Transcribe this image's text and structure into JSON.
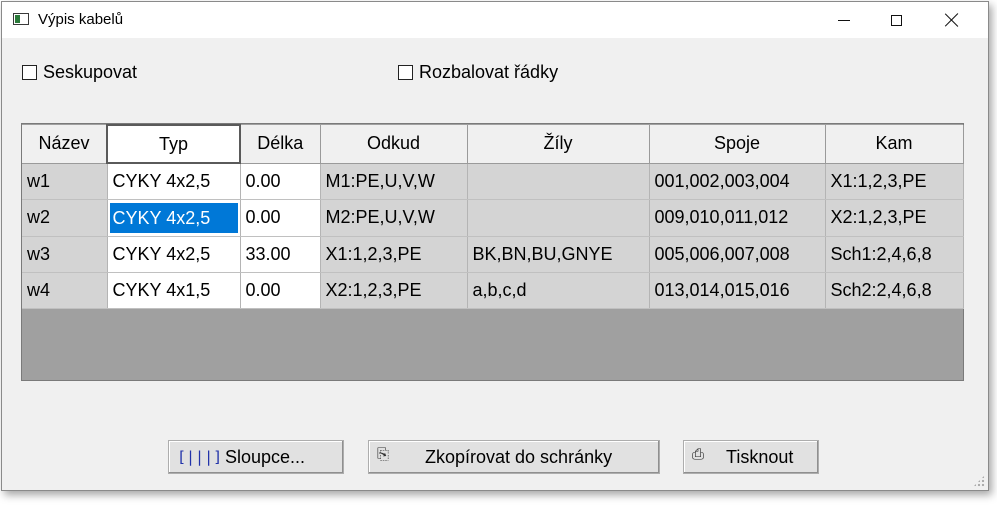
{
  "window": {
    "title": "Výpis kabelů",
    "controls": {
      "minimize": "minimize",
      "maximize": "maximize",
      "close": "close"
    }
  },
  "options": {
    "group_label": "Seskupovat",
    "group_checked": false,
    "expand_label": "Rozbalovat řádky",
    "expand_checked": false
  },
  "table": {
    "columns": [
      "Název",
      "Typ",
      "Délka",
      "Odkud",
      "Žíly",
      "Spoje",
      "Kam"
    ],
    "rows": [
      [
        "w1",
        "CYKY 4x2,5",
        "0.00",
        "M1:PE,U,V,W",
        "",
        "001,002,003,004",
        "X1:1,2,3,PE"
      ],
      [
        "w2",
        "CYKY 4x2,5",
        "0.00",
        "M2:PE,U,V,W",
        "",
        "009,010,011,012",
        "X2:1,2,3,PE"
      ],
      [
        "w3",
        "CYKY 4x2,5",
        "33.00",
        "X1:1,2,3,PE",
        "BK,BN,BU,GNYE",
        "005,006,007,008",
        "Sch1:2,4,6,8"
      ],
      [
        "w4",
        "CYKY 4x1,5",
        "0.00",
        "X2:1,2,3,PE",
        "a,b,c,d",
        "013,014,015,016",
        "Sch2:2,4,6,8"
      ]
    ],
    "active_column": "Typ",
    "selected_cell": {
      "row": 2,
      "column": "Typ"
    }
  },
  "buttons": {
    "columns_label": "Sloupce...",
    "copy_label": "Zkopírovat do schránky",
    "print_label": "Tisknout"
  },
  "colors": {
    "selection": "#0078d7",
    "readonly_cell": "#d4d4d4",
    "editable_cell": "#ffffff",
    "grid_empty": "#a0a0a0"
  },
  "icons": {
    "columns": "columns-icon",
    "copy": "copy-icon",
    "print": "printer-icon"
  }
}
